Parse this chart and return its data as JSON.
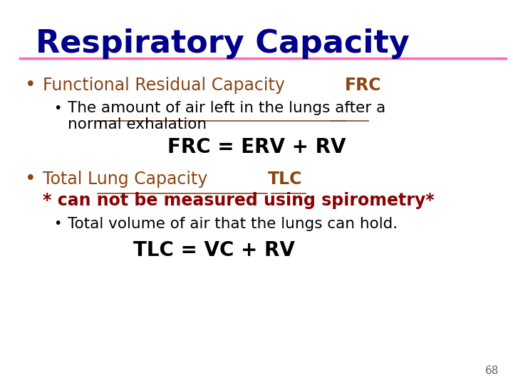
{
  "title": "Respiratory Capacity",
  "title_color": "#00008B",
  "title_fontsize": 32,
  "separator_color": "#FF69B4",
  "background_color": "#FFFFFF",
  "page_number": "68",
  "bullet1_underline": "Functional Residual Capacity ",
  "bullet1_bold_end": "FRC",
  "bullet1_color": "#8B4513",
  "sub_bullet1_line1": "The amount of air left in the lungs after a",
  "sub_bullet1_line2": "normal exhalation",
  "sub_bullet1_color": "#000000",
  "formula1": "FRC = ERV + RV",
  "formula1_color": "#000000",
  "bullet2_underline": "Total Lung Capacity ",
  "bullet2_bold_end": "TLC",
  "bullet2_color": "#8B4513",
  "note_line": "* can not be measured using spirometry*",
  "note_color": "#8B0000",
  "sub_bullet2": "Total volume of air that the lungs can hold.",
  "sub_bullet2_color": "#000000",
  "formula2": "TLC = VC + RV",
  "formula2_color": "#000000"
}
